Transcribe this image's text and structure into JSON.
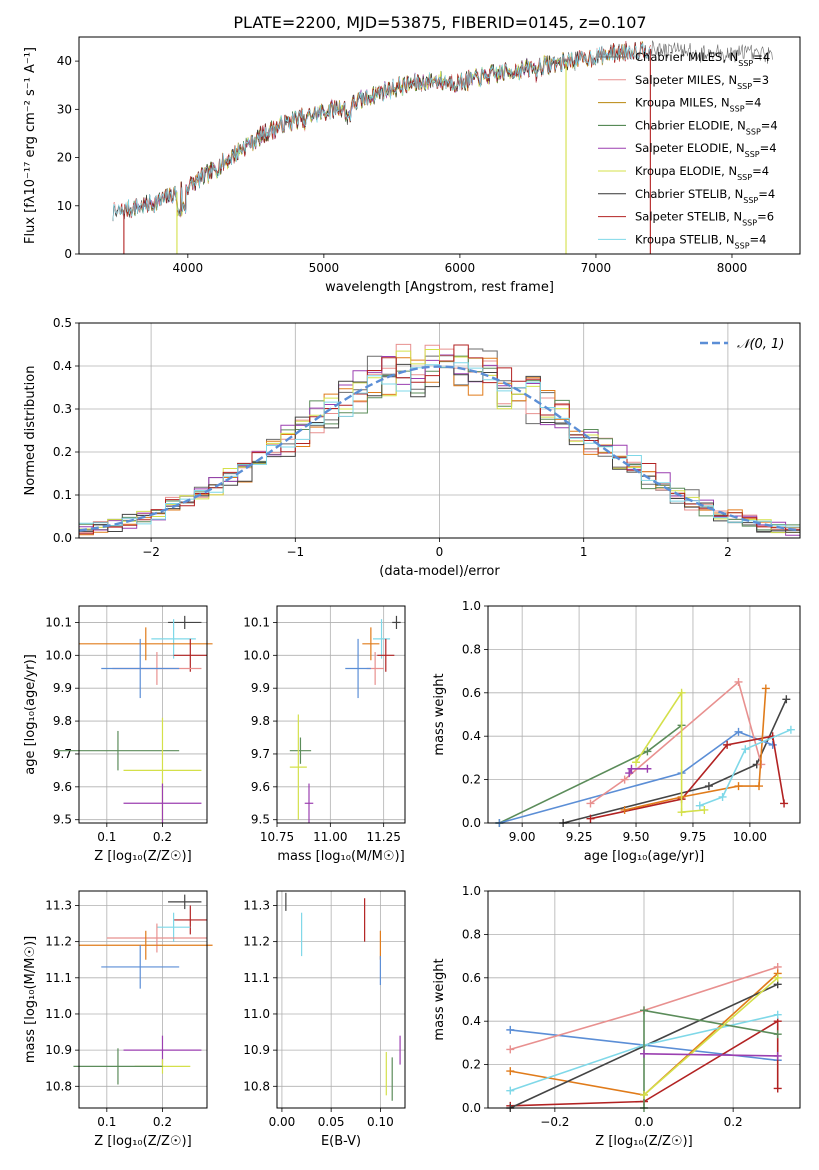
{
  "figure_title": "PLATE=2200, MJD=53875, FIBERID=0145, z=0.107",
  "colors": [
    "#6b6b6b",
    "#e8908f",
    "#b8860b",
    "#3f7a3f",
    "#9b3fb0",
    "#d4e04a",
    "#333333",
    "#b22222",
    "#7fd8e8"
  ],
  "chart_data": [
    {
      "id": "spectrum",
      "type": "line",
      "title": "PLATE=2200, MJD=53875, FIBERID=0145, z=0.107",
      "xlabel": "wavelength [Angstrom, rest frame]",
      "ylabel": "Flux [fλ10⁻¹⁷ erg cm⁻² s⁻¹ A⁻¹]",
      "xlim": [
        3200,
        8500
      ],
      "ylim": [
        0,
        45
      ],
      "xticks": [
        4000,
        5000,
        6000,
        7000,
        8000
      ],
      "yticks": [
        0,
        10,
        20,
        30,
        40
      ],
      "legend_position": "right",
      "continuum": {
        "x": [
          3450,
          3600,
          3800,
          4000,
          4200,
          4400,
          4600,
          4800,
          5000,
          5200,
          5400,
          5600,
          5800,
          6000,
          6200,
          6400,
          6600,
          6800,
          7000,
          7200,
          7400,
          7600,
          7800
        ],
        "y": [
          8.5,
          9.5,
          11,
          14,
          17.5,
          22,
          25.5,
          28,
          29.5,
          31,
          33.5,
          35,
          36,
          35.5,
          37,
          38,
          39,
          40,
          41,
          42,
          42.5,
          42.5,
          41.5
        ]
      },
      "series": [
        {
          "name": "Chabrier MILES, N_SSP=4",
          "color": "#6b6b6b",
          "xmin": 3450,
          "xmax": 8300
        },
        {
          "name": "Salpeter MILES, N_SSP=3",
          "color": "#e8908f",
          "xmin": 3450,
          "xmax": 7300
        },
        {
          "name": "Kroupa MILES, N_SSP=4",
          "color": "#b8860b",
          "xmin": 3500,
          "xmax": 7350
        },
        {
          "name": "Chabrier ELODIE, N_SSP=4",
          "color": "#3f7a3f",
          "xmin": 3600,
          "xmax": 6780
        },
        {
          "name": "Salpeter ELODIE, N_SSP=4",
          "color": "#9b3fb0",
          "xmin": 3600,
          "xmax": 6780
        },
        {
          "name": "Kroupa ELODIE, N_SSP=4",
          "color": "#d4e04a",
          "xmin": 3920,
          "xmax": 6780
        },
        {
          "name": "Chabrier STELIB, N_SSP=4",
          "color": "#333333",
          "xmin": 3450,
          "xmax": 7400
        },
        {
          "name": "Salpeter STELIB, N_SSP=6",
          "color": "#b22222",
          "xmin": 3500,
          "xmax": 7400
        },
        {
          "name": "Kroupa STELIB, N_SSP=4",
          "color": "#7fd8e8",
          "xmin": 3450,
          "xmax": 7400
        }
      ]
    },
    {
      "id": "residuals",
      "type": "line",
      "xlabel": "(data-model)/error",
      "ylabel": "Normed distribution",
      "xlim": [
        -2.5,
        2.5
      ],
      "ylim": [
        0,
        0.5
      ],
      "xticks": [
        -2,
        -1,
        0,
        1,
        2
      ],
      "yticks": [
        0.0,
        0.1,
        0.2,
        0.3,
        0.4,
        0.5
      ],
      "grid": true,
      "legend_position": "top-right",
      "normal_label": "𝒩(0, 1)",
      "normal_color": "#5b8ed6",
      "bin_width": 0.1,
      "series_colors": [
        "#6b6b6b",
        "#e8908f",
        "#e07b1a",
        "#5b8c5a",
        "#9b3fb0",
        "#d4e04a",
        "#444444",
        "#b22222",
        "#7fd8e8"
      ]
    },
    {
      "id": "age_vs_Z",
      "type": "scatter",
      "xlabel": "Z [log₁₀(Z/Z☉)]",
      "ylabel": "age  [log₁₀(age/yr)]",
      "xlim": [
        0.05,
        0.28
      ],
      "ylim": [
        9.49,
        10.15
      ],
      "xticks": [
        0.1,
        0.2
      ],
      "yticks": [
        9.5,
        9.6,
        9.7,
        9.8,
        9.9,
        10.0,
        10.1
      ],
      "grid": true,
      "points": [
        {
          "x": 0.24,
          "y": 10.1,
          "xerr": 0.03,
          "yerr": 0.02,
          "color": "#444444"
        },
        {
          "x": 0.22,
          "y": 10.05,
          "xerr": 0.04,
          "yerr": 0.06,
          "color": "#7fd8e8"
        },
        {
          "x": 0.17,
          "y": 10.035,
          "xerr": 0.12,
          "yerr": 0.05,
          "color": "#e07b1a"
        },
        {
          "x": 0.25,
          "y": 10.0,
          "xerr": 0.03,
          "yerr": 0.05,
          "color": "#b22222"
        },
        {
          "x": 0.19,
          "y": 9.96,
          "xerr": 0.08,
          "yerr": 0.05,
          "color": "#e8908f"
        },
        {
          "x": 0.16,
          "y": 9.96,
          "xerr": 0.07,
          "yerr": 0.09,
          "color": "#5b8ed6"
        },
        {
          "x": 0.12,
          "y": 9.71,
          "xerr": 0.11,
          "yerr": 0.06,
          "color": "#5b8c5a"
        },
        {
          "x": 0.2,
          "y": 9.65,
          "xerr": 0.07,
          "yerr": 0.16,
          "color": "#d4e04a"
        },
        {
          "x": 0.2,
          "y": 9.55,
          "xerr": 0.07,
          "yerr": 0.06,
          "color": "#9b3fb0"
        }
      ]
    },
    {
      "id": "age_vs_mass",
      "type": "scatter",
      "xlabel": "mass [log₁₀(M/M☉)]",
      "ylabel": "",
      "xlim": [
        10.75,
        11.35
      ],
      "ylim": [
        9.49,
        10.15
      ],
      "xticks": [
        10.75,
        11.0,
        11.25
      ],
      "yticks": [
        9.5,
        9.6,
        9.7,
        9.8,
        9.9,
        10.0,
        10.1
      ],
      "grid": true,
      "points": [
        {
          "x": 11.31,
          "y": 10.1,
          "xerr": 0.02,
          "yerr": 0.02,
          "color": "#444444"
        },
        {
          "x": 11.24,
          "y": 10.05,
          "xerr": 0.04,
          "yerr": 0.06,
          "color": "#7fd8e8"
        },
        {
          "x": 11.19,
          "y": 10.035,
          "xerr": 0.04,
          "yerr": 0.05,
          "color": "#e07b1a"
        },
        {
          "x": 11.26,
          "y": 10.0,
          "xerr": 0.04,
          "yerr": 0.05,
          "color": "#b22222"
        },
        {
          "x": 11.21,
          "y": 9.96,
          "xerr": 0.04,
          "yerr": 0.05,
          "color": "#e8908f"
        },
        {
          "x": 11.13,
          "y": 9.96,
          "xerr": 0.06,
          "yerr": 0.09,
          "color": "#5b8ed6"
        },
        {
          "x": 10.86,
          "y": 9.71,
          "xerr": 0.05,
          "yerr": 0.04,
          "color": "#5b8c5a"
        },
        {
          "x": 10.85,
          "y": 9.66,
          "xerr": 0.04,
          "yerr": 0.16,
          "color": "#d4e04a"
        },
        {
          "x": 10.9,
          "y": 9.55,
          "xerr": 0.02,
          "yerr": 0.06,
          "color": "#9b3fb0"
        }
      ]
    },
    {
      "id": "weight_vs_age",
      "type": "line",
      "xlabel": "age  [log₁₀(age/yr)]",
      "ylabel": "mass weight",
      "xlim": [
        8.85,
        10.22
      ],
      "ylim": [
        0,
        1.0
      ],
      "xticks": [
        9.0,
        9.25,
        9.5,
        9.75,
        10.0
      ],
      "yticks": [
        0.0,
        0.2,
        0.4,
        0.6,
        0.8,
        1.0
      ],
      "grid": true,
      "series": [
        {
          "color": "#5b8c5a",
          "x": [
            8.9,
            9.55,
            9.7
          ],
          "y": [
            0.0,
            0.33,
            0.45
          ]
        },
        {
          "color": "#444444",
          "x": [
            9.18,
            9.82,
            10.03,
            10.16
          ],
          "y": [
            0.0,
            0.17,
            0.27,
            0.57
          ]
        },
        {
          "color": "#5b8ed6",
          "x": [
            8.9,
            9.7,
            9.95,
            10.1
          ],
          "y": [
            0.0,
            0.23,
            0.42,
            0.36
          ]
        },
        {
          "color": "#e8908f",
          "x": [
            9.3,
            9.45,
            9.95,
            10.05
          ],
          "y": [
            0.09,
            0.2,
            0.65,
            0.27
          ]
        },
        {
          "color": "#b22222",
          "x": [
            9.3,
            9.7,
            9.9,
            10.1,
            10.15
          ],
          "y": [
            0.02,
            0.11,
            0.36,
            0.4,
            0.09
          ]
        },
        {
          "color": "#e07b1a",
          "x": [
            9.45,
            9.7,
            9.95,
            10.04,
            10.07
          ],
          "y": [
            0.06,
            0.12,
            0.17,
            0.17,
            0.62
          ]
        },
        {
          "color": "#7fd8e8",
          "x": [
            9.78,
            9.88,
            9.98,
            10.18
          ],
          "y": [
            0.08,
            0.12,
            0.34,
            0.43
          ]
        },
        {
          "color": "#d4e04a",
          "x": [
            9.5,
            9.7,
            9.7,
            9.8
          ],
          "y": [
            0.28,
            0.6,
            0.05,
            0.06
          ]
        },
        {
          "color": "#9b3fb0",
          "x": [
            9.47,
            9.48,
            9.55
          ],
          "y": [
            0.23,
            0.25,
            0.25
          ]
        }
      ]
    },
    {
      "id": "mass_vs_Z",
      "type": "scatter",
      "xlabel": "Z [log₁₀(Z/Z☉)]",
      "ylabel": "mass [log₁₀(M/M☉)]",
      "xlim": [
        0.05,
        0.28
      ],
      "ylim": [
        10.74,
        11.34
      ],
      "xticks": [
        0.1,
        0.2
      ],
      "yticks": [
        10.8,
        10.9,
        11.0,
        11.1,
        11.2,
        11.3
      ],
      "grid": true,
      "points": [
        {
          "x": 0.24,
          "y": 11.31,
          "xerr": 0.03,
          "yerr": 0.02,
          "color": "#444444"
        },
        {
          "x": 0.25,
          "y": 11.26,
          "xerr": 0.03,
          "yerr": 0.04,
          "color": "#b22222"
        },
        {
          "x": 0.22,
          "y": 11.24,
          "xerr": 0.03,
          "yerr": 0.04,
          "color": "#7fd8e8"
        },
        {
          "x": 0.19,
          "y": 11.21,
          "xerr": 0.09,
          "yerr": 0.04,
          "color": "#e8908f"
        },
        {
          "x": 0.17,
          "y": 11.19,
          "xerr": 0.12,
          "yerr": 0.04,
          "color": "#e07b1a"
        },
        {
          "x": 0.16,
          "y": 11.13,
          "xerr": 0.07,
          "yerr": 0.06,
          "color": "#5b8ed6"
        },
        {
          "x": 0.2,
          "y": 10.9,
          "xerr": 0.07,
          "yerr": 0.04,
          "color": "#9b3fb0"
        },
        {
          "x": 0.2,
          "y": 10.855,
          "xerr": 0.05,
          "yerr": 0.02,
          "color": "#d4e04a"
        },
        {
          "x": 0.12,
          "y": 10.855,
          "xerr": 0.08,
          "yerr": 0.05,
          "color": "#5b8c5a"
        }
      ]
    },
    {
      "id": "mass_vs_EBV",
      "type": "scatter",
      "xlabel": "E(B-V)",
      "ylabel": "",
      "xlim": [
        -0.005,
        0.125
      ],
      "ylim": [
        10.74,
        11.34
      ],
      "xticks": [
        0.0,
        0.05,
        0.1
      ],
      "yticks": [
        10.8,
        10.9,
        11.0,
        11.1,
        11.2,
        11.3
      ],
      "grid": true,
      "points": [
        {
          "x": 0.004,
          "y": 11.31,
          "xerr": 0,
          "yerr": 0.025,
          "color": "#444444"
        },
        {
          "x": 0.02,
          "y": 11.22,
          "xerr": 0,
          "yerr": 0.06,
          "color": "#7fd8e8"
        },
        {
          "x": 0.084,
          "y": 11.26,
          "xerr": 0,
          "yerr": 0.06,
          "color": "#b22222"
        },
        {
          "x": 0.1,
          "y": 11.19,
          "xerr": 0,
          "yerr": 0.04,
          "color": "#e07b1a"
        },
        {
          "x": 0.1,
          "y": 11.12,
          "xerr": 0,
          "yerr": 0.04,
          "color": "#5b8ed6"
        },
        {
          "x": 0.12,
          "y": 10.9,
          "xerr": 0,
          "yerr": 0.04,
          "color": "#9b3fb0"
        },
        {
          "x": 0.106,
          "y": 10.835,
          "xerr": 0,
          "yerr": 0.06,
          "color": "#d4e04a"
        },
        {
          "x": 0.112,
          "y": 10.82,
          "xerr": 0,
          "yerr": 0.06,
          "color": "#5b8c5a"
        }
      ]
    },
    {
      "id": "weight_vs_Z",
      "type": "line",
      "xlabel": "Z [log₁₀(Z/Z☉)]",
      "ylabel": "mass weight",
      "xlim": [
        -0.35,
        0.35
      ],
      "ylim": [
        0,
        1.0
      ],
      "xticks": [
        -0.2,
        0.0,
        0.2
      ],
      "yticks": [
        0.0,
        0.2,
        0.4,
        0.6,
        0.8,
        1.0
      ],
      "grid": true,
      "series": [
        {
          "color": "#5b8ed6",
          "x": [
            -0.3,
            0.3
          ],
          "y": [
            0.36,
            0.22
          ]
        },
        {
          "color": "#e8908f",
          "x": [
            -0.3,
            0.0,
            0.3
          ],
          "y": [
            0.27,
            0.45,
            0.65
          ]
        },
        {
          "color": "#e07b1a",
          "x": [
            -0.3,
            0.0,
            0.3
          ],
          "y": [
            0.17,
            0.06,
            0.62
          ]
        },
        {
          "color": "#b22222",
          "x": [
            -0.3,
            0.0,
            0.3,
            0.3
          ],
          "y": [
            0.01,
            0.03,
            0.4,
            0.09
          ]
        },
        {
          "color": "#444444",
          "x": [
            -0.3,
            0.3
          ],
          "y": [
            0.0,
            0.57
          ]
        },
        {
          "color": "#7fd8e8",
          "x": [
            -0.3,
            0.0,
            0.3
          ],
          "y": [
            0.08,
            0.29,
            0.43
          ]
        },
        {
          "color": "#5b8c5a",
          "x": [
            0.0,
            0.0,
            0.3
          ],
          "y": [
            0.0,
            0.45,
            0.34
          ]
        },
        {
          "color": "#d4e04a",
          "x": [
            0.0,
            0.3
          ],
          "y": [
            0.06,
            0.6
          ]
        },
        {
          "color": "#9b3fb0",
          "x": [
            0.0,
            0.3
          ],
          "y": [
            0.25,
            0.24
          ]
        }
      ]
    }
  ]
}
